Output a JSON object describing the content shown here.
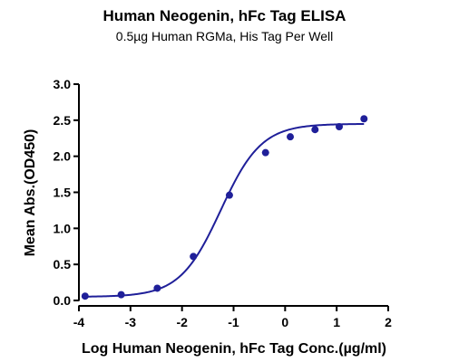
{
  "chart_data": {
    "type": "scatter",
    "title": "Human Neogenin, hFc Tag ELISA",
    "subtitle": "0.5µg Human RGMa, His Tag Per Well",
    "xlabel": "Log Human Neogenin, hFc Tag Conc.(µg/ml)",
    "ylabel": "Mean Abs.(OD450)",
    "xlim": [
      -4,
      2
    ],
    "ylim": [
      0,
      3.0
    ],
    "x_ticks": [
      "-4",
      "-3",
      "-2",
      "-1",
      "0",
      "1",
      "2"
    ],
    "y_ticks": [
      "0.0",
      "0.5",
      "1.0",
      "1.5",
      "2.0",
      "2.5",
      "3.0"
    ],
    "grid": false,
    "color": "#1f1f99",
    "series": [
      {
        "x": [
          -3.88,
          -3.18,
          -2.48,
          -1.78,
          -1.08,
          -0.38,
          0.1,
          0.58,
          1.05,
          1.53
        ],
        "y": [
          0.06,
          0.08,
          0.17,
          0.61,
          1.46,
          2.05,
          2.27,
          2.37,
          2.41,
          2.52
        ]
      }
    ],
    "fit_curve": {
      "bottom": 0.05,
      "top": 2.45,
      "logEC50": -1.25,
      "hill": 1.1
    }
  }
}
